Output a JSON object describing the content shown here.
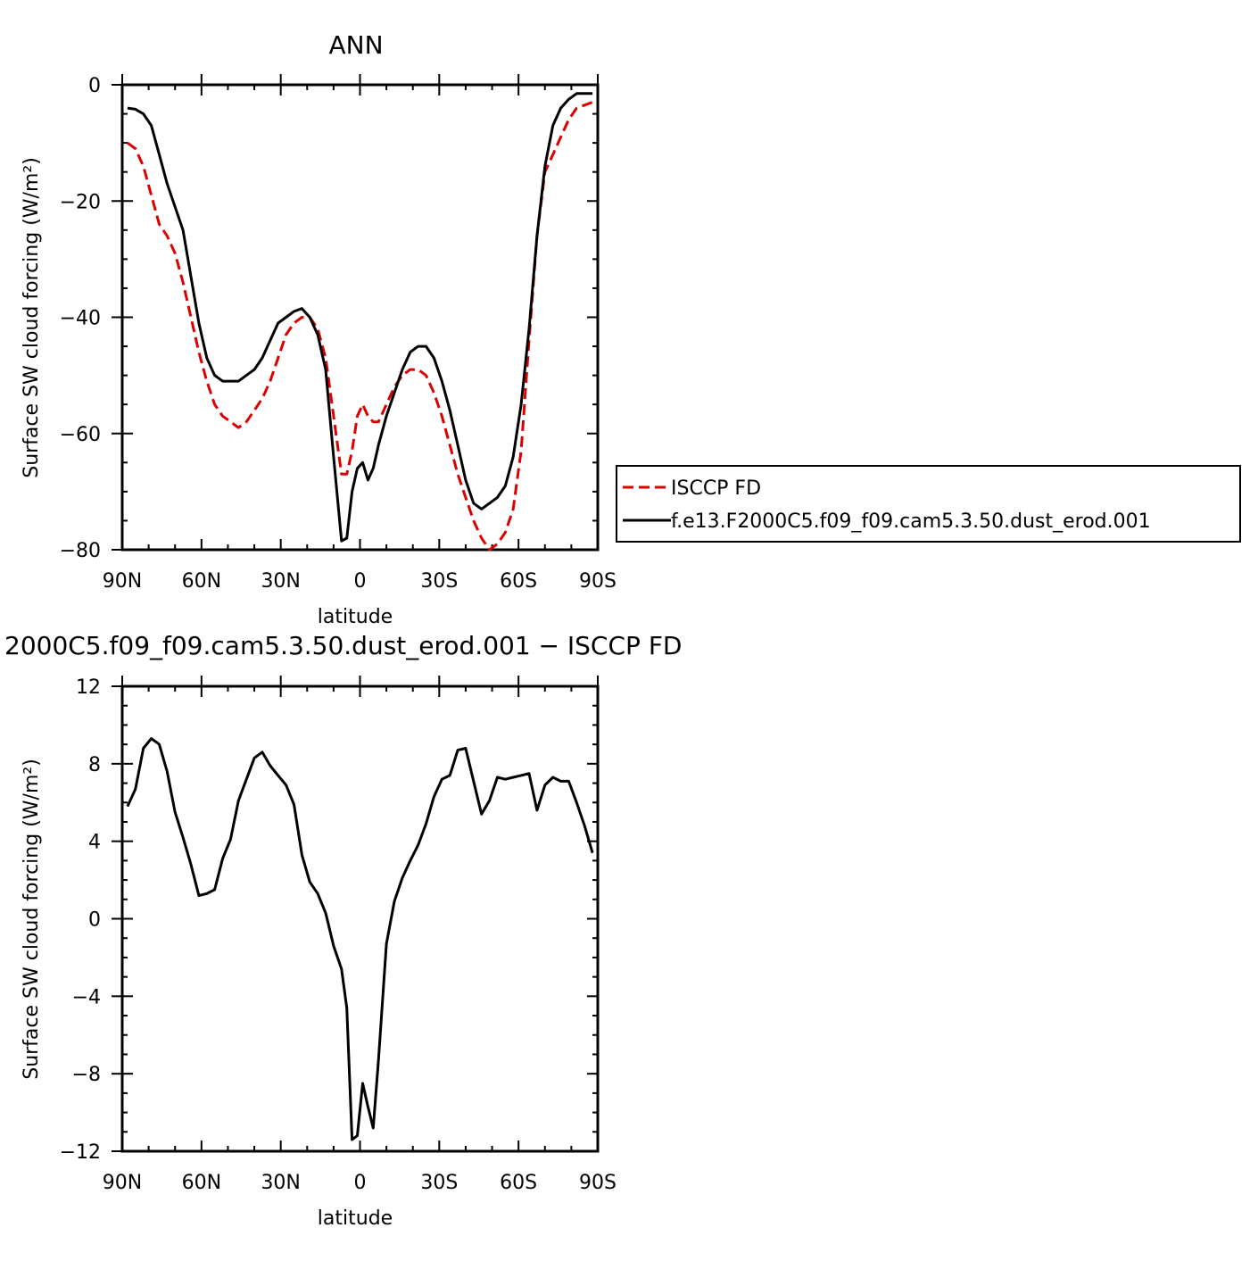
{
  "chart_data": [
    {
      "type": "line",
      "title": "ANN",
      "xlabel": "latitude",
      "ylabel": "Surface SW cloud forcing (W/m²)",
      "ylim": [
        -80,
        0
      ],
      "xlim": [
        -90,
        90
      ],
      "yticks": [
        0,
        -20,
        -40,
        -60,
        -80
      ],
      "ytick_labels": [
        "0",
        "−20",
        "−40",
        "−60",
        "−80"
      ],
      "xticks": [
        -90,
        -60,
        -30,
        0,
        30,
        60,
        90
      ],
      "xtick_labels": [
        "90N",
        "60N",
        "30N",
        "0",
        "30S",
        "60S",
        "90S"
      ],
      "legend": {
        "placement": "right"
      },
      "series": [
        {
          "name": "ISCCP FD",
          "color": "#dd0000",
          "dash": true,
          "x": [
            -88,
            -85,
            -82,
            -79,
            -76,
            -73,
            -70,
            -67,
            -64,
            -61,
            -58,
            -55,
            -52,
            -49,
            -46,
            -43,
            -40,
            -37,
            -34,
            -31,
            -28,
            -25,
            -22,
            -19,
            -16,
            -13,
            -10,
            -7,
            -5,
            -3,
            -1,
            1,
            3,
            5,
            7,
            10,
            13,
            16,
            19,
            22,
            25,
            28,
            31,
            34,
            37,
            40,
            43,
            46,
            49,
            52,
            55,
            58,
            61,
            64,
            67,
            70,
            73,
            76,
            79,
            82,
            85,
            88
          ],
          "y": [
            -10,
            -11,
            -14,
            -19,
            -24,
            -26,
            -29,
            -34,
            -40,
            -46,
            -51,
            -55,
            -57,
            -58,
            -59,
            -58,
            -56,
            -54,
            -51,
            -47,
            -43,
            -41,
            -40,
            -40,
            -42,
            -47,
            -57,
            -67,
            -67,
            -63,
            -57,
            -55,
            -57,
            -58,
            -58,
            -55,
            -52,
            -50,
            -49,
            -49,
            -50,
            -53,
            -57,
            -62,
            -67,
            -71,
            -75,
            -78,
            -80,
            -79,
            -77,
            -73,
            -63,
            -44,
            -26,
            -15,
            -12,
            -9,
            -6,
            -4,
            -3.5,
            -3
          ]
        },
        {
          "name": "f.e13.F2000C5.f09_f09.cam5.3.50.dust_erod.001",
          "color": "#000000",
          "dash": false,
          "x": [
            -88,
            -85,
            -82,
            -79,
            -76,
            -73,
            -70,
            -67,
            -64,
            -61,
            -58,
            -55,
            -52,
            -49,
            -46,
            -43,
            -40,
            -37,
            -34,
            -31,
            -28,
            -25,
            -22,
            -19,
            -16,
            -13,
            -10,
            -7,
            -5,
            -3,
            -1,
            1,
            3,
            5,
            7,
            10,
            13,
            16,
            19,
            22,
            25,
            28,
            31,
            34,
            37,
            40,
            43,
            46,
            49,
            52,
            55,
            58,
            61,
            64,
            67,
            70,
            73,
            76,
            79,
            82,
            85,
            88
          ],
          "y": [
            -4,
            -4.2,
            -5,
            -7,
            -12,
            -17,
            -21,
            -25,
            -33,
            -41,
            -47,
            -50,
            -51,
            -51,
            -51,
            -50,
            -49,
            -47,
            -44,
            -41,
            -40,
            -39,
            -38.5,
            -40,
            -43,
            -49,
            -64,
            -78.5,
            -78,
            -70,
            -66,
            -65,
            -68,
            -66,
            -62,
            -57,
            -53,
            -49,
            -46,
            -45,
            -45,
            -47,
            -51,
            -56,
            -62,
            -68,
            -72,
            -73,
            -72,
            -71,
            -69,
            -64,
            -55,
            -42,
            -26,
            -14,
            -7,
            -4,
            -2.5,
            -1.5,
            -1.5,
            -1.5
          ]
        }
      ]
    },
    {
      "type": "line",
      "title": "2000C5.f09_f09.cam5.3.50.dust_erod.001 − ISCCP FD",
      "xlabel": "latitude",
      "ylabel": "Surface SW cloud forcing (W/m²)",
      "ylim": [
        -12,
        12
      ],
      "xlim": [
        -90,
        90
      ],
      "yticks": [
        12,
        8,
        4,
        0,
        -4,
        -8,
        -12
      ],
      "ytick_labels": [
        "12",
        "8",
        "4",
        "0",
        "−4",
        "−8",
        "−12"
      ],
      "xticks": [
        -90,
        -60,
        -30,
        0,
        30,
        60,
        90
      ],
      "xtick_labels": [
        "90N",
        "60N",
        "30N",
        "0",
        "30S",
        "60S",
        "90S"
      ],
      "series": [
        {
          "color": "#000000",
          "dash": false,
          "x": [
            -88,
            -85,
            -82,
            -79,
            -76,
            -73,
            -70,
            -67,
            -64,
            -61,
            -58,
            -55,
            -52,
            -49,
            -46,
            -43,
            -40,
            -37,
            -34,
            -31,
            -28,
            -25,
            -22,
            -19,
            -16,
            -13,
            -10,
            -7,
            -5,
            -3,
            -1,
            1,
            3,
            5,
            7,
            10,
            13,
            16,
            19,
            22,
            25,
            28,
            31,
            34,
            37,
            40,
            43,
            46,
            49,
            52,
            55,
            58,
            61,
            64,
            67,
            70,
            73,
            76,
            79,
            82,
            85,
            88
          ],
          "y": [
            5.8,
            6.7,
            8.8,
            9.3,
            9.0,
            7.6,
            5.5,
            4.2,
            2.8,
            1.2,
            1.3,
            1.5,
            3.1,
            4.1,
            6.1,
            7.2,
            8.3,
            8.6,
            7.9,
            7.4,
            6.9,
            5.9,
            3.3,
            1.9,
            1.3,
            0.3,
            -1.4,
            -2.6,
            -4.6,
            -11.4,
            -11.2,
            -8.5,
            -9.7,
            -10.8,
            -7.3,
            -1.3,
            0.9,
            2.1,
            3.0,
            3.8,
            4.9,
            6.3,
            7.2,
            7.4,
            8.7,
            8.8,
            7.1,
            5.4,
            6.1,
            7.3,
            7.2,
            7.3,
            7.4,
            7.5,
            5.6,
            6.9,
            7.3,
            7.1,
            7.1,
            6.0,
            4.8,
            3.4
          ]
        }
      ]
    }
  ]
}
